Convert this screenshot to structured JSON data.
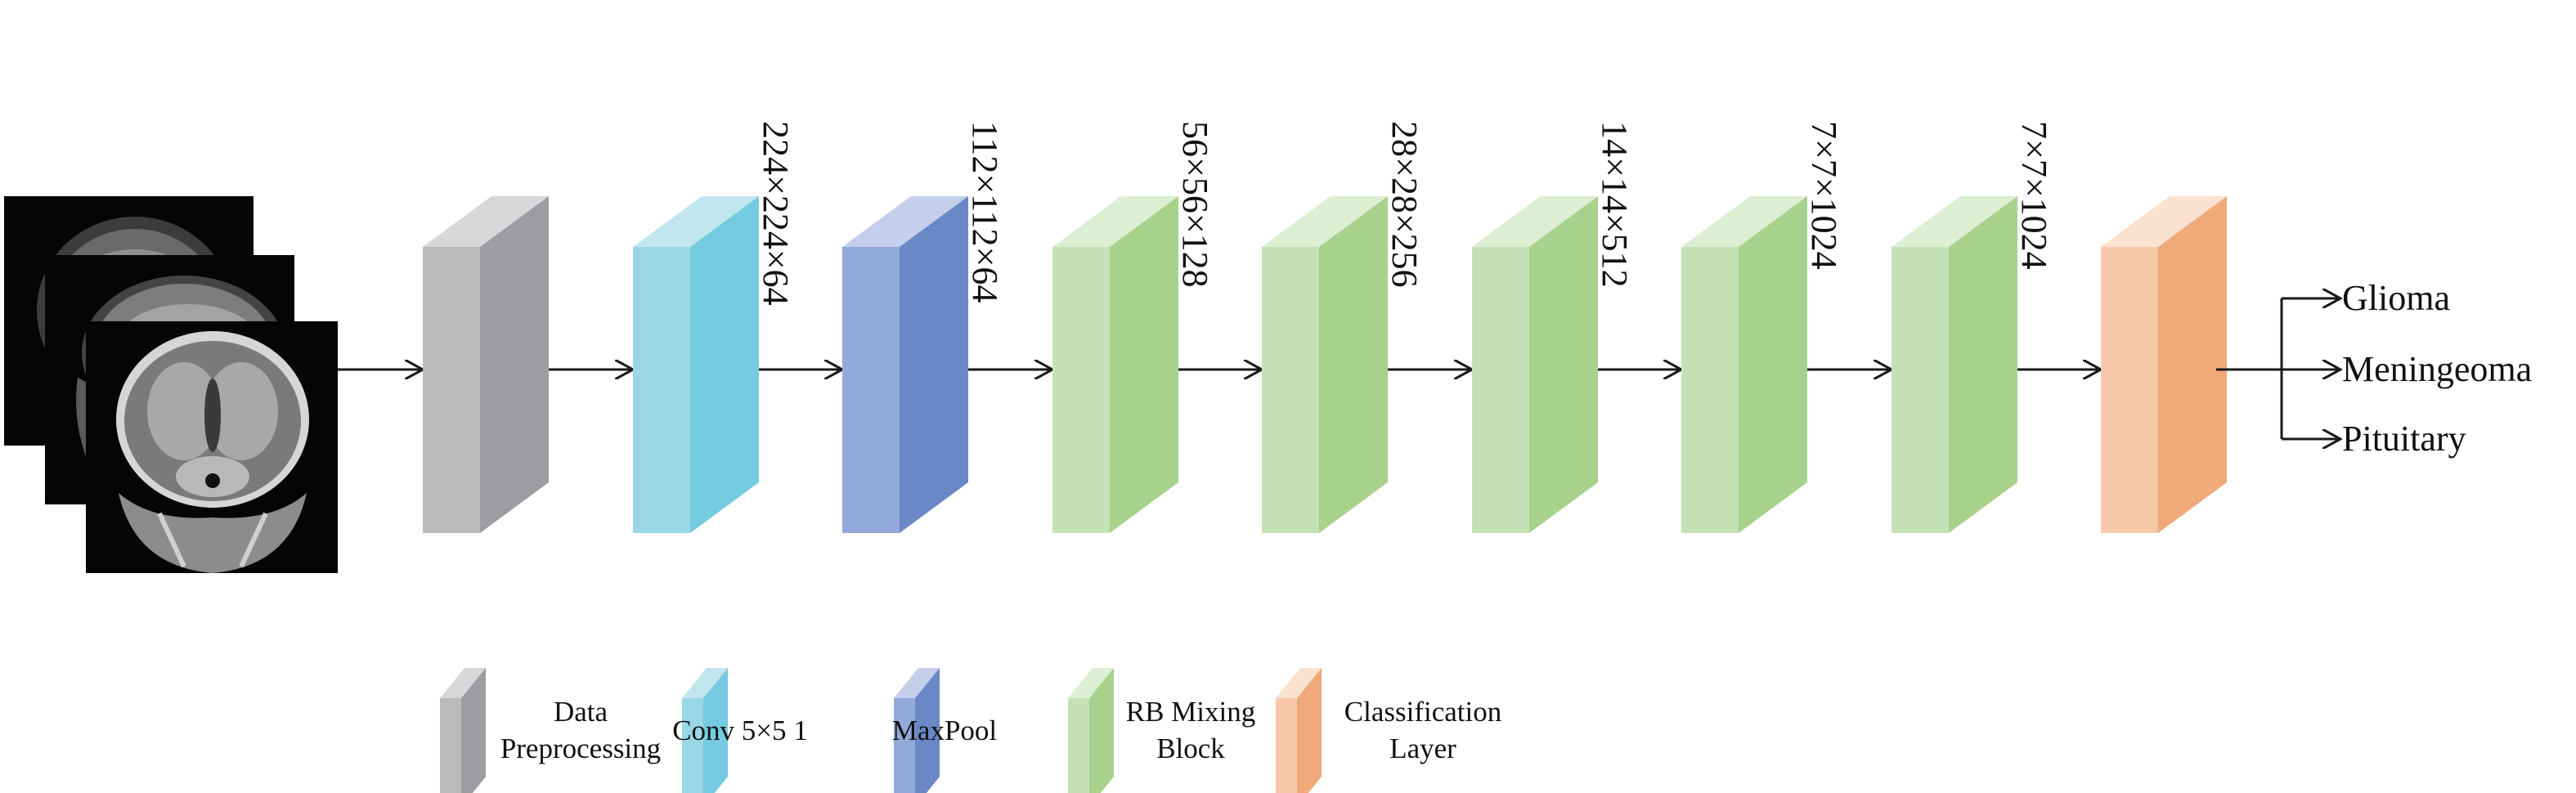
{
  "colors": {
    "gray": [
      "#d6d7d9",
      "#babbbd",
      "#9c9da0"
    ],
    "cyan": [
      "#c2e6ee",
      "#99d7e5",
      "#74cbdf"
    ],
    "blue": [
      "#c3cfeb",
      "#93a9da",
      "#6a88c6"
    ],
    "green": [
      "#dcefd3",
      "#c5e2b6",
      "#a8d18c"
    ],
    "orange": [
      "#fbe1d0",
      "#f8c9a9",
      "#f0a978"
    ],
    "arrow": "#1a1a1a"
  },
  "pipeline": {
    "blocks": [
      {
        "type": "preprocessing",
        "color": "gray",
        "dims": ""
      },
      {
        "type": "conv",
        "color": "cyan",
        "dims": "224×224×64"
      },
      {
        "type": "maxpool",
        "color": "blue",
        "dims": "112×112×64"
      },
      {
        "type": "rb-mixing",
        "color": "green",
        "dims": "56×56×128"
      },
      {
        "type": "rb-mixing",
        "color": "green",
        "dims": "28×28×256"
      },
      {
        "type": "rb-mixing",
        "color": "green",
        "dims": "14×14×512"
      },
      {
        "type": "rb-mixing",
        "color": "green",
        "dims": "7×7×1024"
      },
      {
        "type": "rb-mixing",
        "color": "green",
        "dims": "7×7×1024"
      },
      {
        "type": "classification",
        "color": "orange",
        "dims": ""
      }
    ]
  },
  "outputs": [
    "Glioma",
    "Meningeoma",
    "Pituitary"
  ],
  "legend": [
    {
      "color": "gray",
      "lines": [
        "Data",
        "Preprocessing"
      ]
    },
    {
      "color": "cyan",
      "lines": [
        "Conv 5×5 1"
      ]
    },
    {
      "color": "blue",
      "lines": [
        "MaxPool"
      ]
    },
    {
      "color": "green",
      "lines": [
        "RB Mixing",
        "Block"
      ]
    },
    {
      "color": "orange",
      "lines": [
        "Classification",
        "Layer"
      ]
    }
  ]
}
